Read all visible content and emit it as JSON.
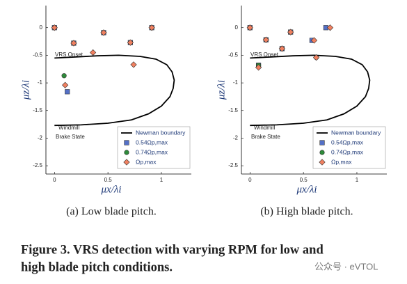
{
  "chart_data": [
    {
      "type": "scatter",
      "caption": "(a) Low blade pitch.",
      "x_label": "μx/λi",
      "y_label": "μz/λi",
      "xlim": [
        -0.08,
        1.28
      ],
      "ylim": [
        -2.65,
        0.4
      ],
      "xticks": [
        0,
        0.5,
        1
      ],
      "yticks": [
        0,
        -0.5,
        -1,
        -1.5,
        -2,
        -2.5
      ],
      "grid": false,
      "legend": "lower right",
      "annotations": [
        "VRS Onset",
        "Windmill",
        "Brake State"
      ],
      "series": [
        {
          "name": "Newman boundary",
          "color": "#000000",
          "marker": "line",
          "x": [
            0,
            0.2,
            0.4,
            0.6,
            0.8,
            0.95,
            1.05,
            1.1,
            1.12,
            1.11,
            1.08,
            1.0,
            0.88,
            0.72,
            0.5,
            0.25,
            0
          ],
          "y": [
            -0.55,
            -0.53,
            -0.51,
            -0.5,
            -0.52,
            -0.57,
            -0.67,
            -0.8,
            -0.95,
            -1.1,
            -1.25,
            -1.42,
            -1.56,
            -1.67,
            -1.73,
            -1.76,
            -1.77
          ]
        },
        {
          "name": "0.54Ωp,max",
          "color": "#5470c6",
          "marker": "square",
          "x": [
            0,
            0.18,
            0.46,
            0.71,
            0.91,
            0.12
          ],
          "y": [
            0,
            -0.28,
            -0.09,
            -0.27,
            0,
            -1.16
          ]
        },
        {
          "name": "0.74Ωp,max",
          "color": "#2e8b3a",
          "marker": "circle",
          "x": [
            0,
            0.18,
            0.46,
            0.71,
            0.91,
            0.09
          ],
          "y": [
            0,
            -0.28,
            -0.09,
            -0.27,
            0,
            -0.87
          ]
        },
        {
          "name": "Ωp,max",
          "color": "#f08060",
          "marker": "diamond",
          "x": [
            0,
            0.18,
            0.36,
            0.46,
            0.71,
            0.91,
            0.74,
            0.1
          ],
          "y": [
            0,
            -0.28,
            -0.45,
            -0.09,
            -0.27,
            0,
            -0.67,
            -1.04
          ]
        }
      ]
    },
    {
      "type": "scatter",
      "caption": "(b) High blade pitch.",
      "x_label": "μx/λi",
      "y_label": "μz/λi",
      "xlim": [
        -0.08,
        1.28
      ],
      "ylim": [
        -2.65,
        0.4
      ],
      "xticks": [
        0,
        0.5,
        1
      ],
      "yticks": [
        0,
        -0.5,
        -1,
        -1.5,
        -2,
        -2.5
      ],
      "grid": false,
      "legend": "lower right",
      "annotations": [
        "VRS Onset",
        "Windmill",
        "Brake State"
      ],
      "series": [
        {
          "name": "Newman boundary",
          "color": "#000000",
          "marker": "line",
          "x": [
            0,
            0.2,
            0.4,
            0.6,
            0.8,
            0.95,
            1.05,
            1.1,
            1.12,
            1.11,
            1.08,
            1.0,
            0.88,
            0.72,
            0.5,
            0.25,
            0
          ],
          "y": [
            -0.55,
            -0.53,
            -0.51,
            -0.5,
            -0.52,
            -0.57,
            -0.67,
            -0.8,
            -0.95,
            -1.1,
            -1.25,
            -1.42,
            -1.56,
            -1.67,
            -1.73,
            -1.76,
            -1.77
          ]
        },
        {
          "name": "0.54Ωp,max",
          "color": "#5470c6",
          "marker": "square",
          "x": [
            0,
            0.15,
            0.38,
            0.3,
            0.58,
            0.71,
            0.08
          ],
          "y": [
            0,
            -0.22,
            -0.08,
            -0.38,
            -0.23,
            0,
            -0.68
          ]
        },
        {
          "name": "0.74Ωp,max",
          "color": "#2e8b3a",
          "marker": "circle",
          "x": [
            0,
            0.15,
            0.38,
            0.3,
            0.62,
            0.08
          ],
          "y": [
            0,
            -0.22,
            -0.08,
            -0.38,
            -0.54,
            -0.68
          ]
        },
        {
          "name": "Ωp,max",
          "color": "#f08060",
          "marker": "diamond",
          "x": [
            0,
            0.15,
            0.38,
            0.3,
            0.6,
            0.62,
            0.75,
            0.08
          ],
          "y": [
            0,
            -0.22,
            -0.08,
            -0.38,
            -0.23,
            -0.54,
            0,
            -0.72
          ]
        }
      ]
    }
  ],
  "figure_caption": [
    "Figure 3. VRS detection with varying RPM for low and",
    "high blade pitch conditions."
  ],
  "watermark": "公众号 · eVTOL"
}
